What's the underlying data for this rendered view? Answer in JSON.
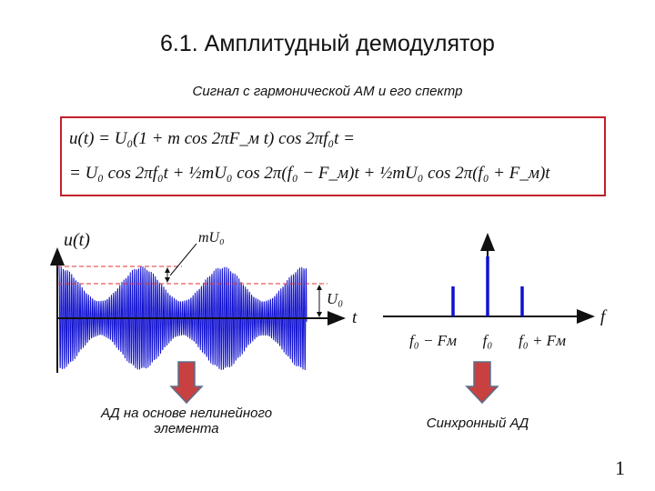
{
  "slide": {
    "title": "6.1. Амплитудный демодулятор",
    "subtitle": "Сигнал с гармонической АМ и его спектр",
    "formula": {
      "line1": "u(t) = U₀(1 + m cos 2πF_м t) cos 2πf₀t =",
      "line2": "= U₀ cos 2πf₀t + ½mU₀ cos 2π(f₀ − F_м)t + ½mU₀ cos 2π(f₀ + F_м)t"
    },
    "time_plot": {
      "y_label": "u(t)",
      "x_label": "t",
      "amplitude_label": "U₀",
      "modulation_label": "mU₀",
      "signal_color": "#1010d0",
      "guide_color": "#e03030"
    },
    "spectrum_plot": {
      "x_label": "f",
      "line_labels": [
        "f₀ − Fм",
        "f₀",
        "f₀ + Fм"
      ],
      "relative_amplitudes": [
        0.5,
        1,
        0.5
      ],
      "line_color": "#1010d0"
    },
    "captions": {
      "left": "АД на основе нелинейного элемента",
      "right": "Синхронный АД"
    },
    "arrow_color": "#c84040",
    "page_number": "1"
  }
}
